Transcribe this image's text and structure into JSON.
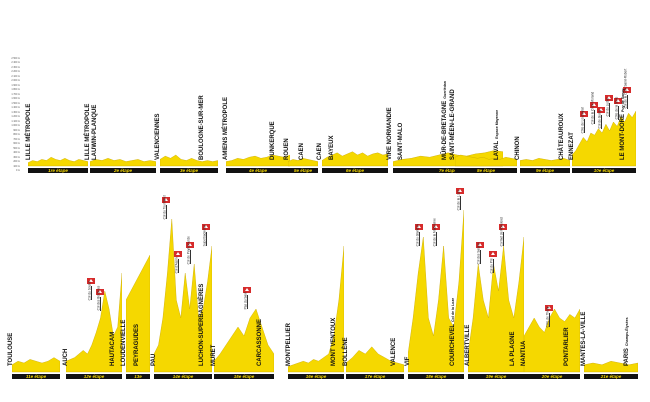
{
  "colors": {
    "terrain": "#f5d800",
    "band": "#111111",
    "band_text": "#f5d800",
    "depart_pin": "#1a6fb5",
    "arrivee_pin": "#d62b2b"
  },
  "y_axis": {
    "ticks": [
      "2 500 m",
      "2 400 m",
      "2 300 m",
      "2 200 m",
      "2 100 m",
      "2 000 m",
      "1 900 m",
      "1 800 m",
      "1 700 m",
      "1 600 m",
      "1 500 m",
      "1 400 m",
      "1 300 m",
      "1 200 m",
      "1 100 m",
      "1 000 m",
      "900 m",
      "800 m",
      "700 m",
      "600 m",
      "500 m",
      "400 m",
      "300 m",
      "200 m",
      "100 m",
      "0 m"
    ]
  },
  "stages": [
    {
      "id": 1,
      "band": "1re étape",
      "labels": [
        {
          "text": "LILLE MÉTROPOLE",
          "pin": "both"
        }
      ],
      "climbs": [],
      "profile": [
        0.03,
        0.05,
        0.04,
        0.06,
        0.05,
        0.08,
        0.06,
        0.05,
        0.07,
        0.05,
        0.04,
        0.06,
        0.05,
        0.04
      ]
    },
    {
      "id": 2,
      "band": "2e étape",
      "labels": [
        {
          "text": "LILLE MÉTROPOLE",
          "pin": "depart"
        },
        {
          "text": "LAUWIN-PLANQUE",
          "pin": "arrivee"
        }
      ],
      "climbs": [],
      "profile": [
        0.04,
        0.06,
        0.05,
        0.07,
        0.05,
        0.06,
        0.04,
        0.05,
        0.06,
        0.04,
        0.05,
        0.04
      ]
    },
    {
      "id": 3,
      "band": "3e étape",
      "labels": [
        {
          "text": "BOULOGNE-SUR-MER",
          "pin": "arrivee"
        },
        {
          "text": "VALENCIENNES",
          "pin": "depart"
        }
      ],
      "climbs": [],
      "profile": [
        0.06,
        0.09,
        0.07,
        0.1,
        0.06,
        0.05,
        0.07,
        0.05,
        0.04,
        0.05,
        0.04,
        0.05
      ]
    },
    {
      "id": 4,
      "band": "4e étape",
      "labels": [
        {
          "text": "DUNKERQUE",
          "pin": "arrivee"
        },
        {
          "text": "AMIENS MÉTROPOLE",
          "pin": "depart"
        }
      ],
      "climbs": [],
      "profile": [
        0.04,
        0.05,
        0.07,
        0.06,
        0.08,
        0.09,
        0.07,
        0.08,
        0.1,
        0.09,
        0.08,
        0.1
      ]
    },
    {
      "id": 5,
      "band": "5e étape",
      "labels": [
        {
          "text": "ROUEN",
          "pin": "arrivee"
        },
        {
          "text": "CAEN",
          "pin": "depart"
        }
      ],
      "climbs": [],
      "profile": [
        0.04,
        0.06,
        0.05,
        0.07,
        0.06,
        0.05,
        0.04
      ]
    },
    {
      "id": 6,
      "band": "6e étape",
      "labels": [
        {
          "text": "CAEN",
          "pin": "arrivee"
        },
        {
          "text": "BAYEUX",
          "pin": "depart"
        }
      ],
      "climbs": [],
      "profile": [
        0.05,
        0.08,
        0.1,
        0.12,
        0.09,
        0.11,
        0.13,
        0.1,
        0.12,
        0.09,
        0.11,
        0.12,
        0.1,
        0.11
      ]
    },
    {
      "id": 7,
      "band": "7e étape",
      "labels": [
        {
          "text": "VIRE NORMANDIE",
          "pin": "arrivee"
        },
        {
          "text": "SAINT-MALO",
          "pin": "depart"
        },
        {
          "text": "MÛR-DE-BRETAGNE",
          "sub": "Guerlédan",
          "pin": "arrivee"
        }
      ],
      "climbs": [],
      "profile": [
        0.04,
        0.06,
        0.07,
        0.09,
        0.08,
        0.1,
        0.12,
        0.1,
        0.09,
        0.11,
        0.12,
        0.14,
        0.13
      ]
    },
    {
      "id": 8,
      "band": "8e étape",
      "labels": [
        {
          "text": "SAINT-MÉEN-LE-GRAND",
          "pin": "depart"
        },
        {
          "text": "LAVAL",
          "sub": "Espace Mayenne",
          "pin": "arrivee"
        }
      ],
      "climbs": [],
      "profile": [
        0.08,
        0.1,
        0.09,
        0.08,
        0.07,
        0.08,
        0.06,
        0.07,
        0.06,
        0.08,
        0.07,
        0.06
      ]
    },
    {
      "id": 9,
      "band": "9e étape",
      "labels": [
        {
          "text": "CHINON",
          "pin": "depart"
        },
        {
          "text": "CHÂTEAUROUX",
          "pin": "arrivee"
        }
      ],
      "climbs": [],
      "profile": [
        0.05,
        0.06,
        0.05,
        0.07,
        0.06,
        0.05,
        0.06,
        0.07,
        0.05
      ]
    },
    {
      "id": 10,
      "band": "10e étape",
      "labels": [
        {
          "text": "ENNEZAT",
          "pin": "depart"
        },
        {
          "text": "LE MONT-DORE",
          "sub": "Puy de Sancy",
          "pin": "arrivee"
        }
      ],
      "climbs": [
        {
          "name": "Côte de Loubeyrat",
          "rel": 0.18,
          "h": 0.3
        },
        {
          "name": "Col de la Croix Morand",
          "rel": 0.34,
          "h": 0.38
        },
        {
          "name": "Col de Guéry",
          "rel": 0.46,
          "h": 0.34
        },
        {
          "name": "Col du Ludier",
          "rel": 0.58,
          "h": 0.45
        },
        {
          "name": "Côte de la Stèle",
          "rel": 0.72,
          "h": 0.42
        },
        {
          "name": "Col de la Croix Saint-Robert",
          "rel": 0.86,
          "h": 0.52
        }
      ],
      "profile": [
        0.1,
        0.14,
        0.2,
        0.26,
        0.22,
        0.3,
        0.28,
        0.34,
        0.3,
        0.38,
        0.32,
        0.4,
        0.36,
        0.45,
        0.4,
        0.48,
        0.44,
        0.5
      ]
    },
    {
      "id": 11,
      "band": "11e étape",
      "labels": [
        {
          "text": "TOULOUSE",
          "pin": "both"
        }
      ],
      "climbs": [],
      "profile": [
        0.04,
        0.06,
        0.05,
        0.07,
        0.06,
        0.05,
        0.06,
        0.08,
        0.06
      ]
    },
    {
      "id": 12,
      "band": "12e étape",
      "labels": [
        {
          "text": "AUCH",
          "pin": "depart"
        },
        {
          "text": "HAUTACAM",
          "pin": "arrivee"
        }
      ],
      "climbs": [
        {
          "name": "Col du Soulor",
          "rel": 0.45,
          "h": 0.4
        },
        {
          "name": "Col des Bordères",
          "rel": 0.6,
          "h": 0.34
        }
      ],
      "profile": [
        0.06,
        0.07,
        0.08,
        0.1,
        0.12,
        0.1,
        0.15,
        0.22,
        0.3,
        0.45,
        0.35,
        0.2,
        0.25,
        0.55
      ]
    },
    {
      "id": 13,
      "band": "13e",
      "labels": [
        {
          "text": "LOUDENVIELLE",
          "pin": "both"
        },
        {
          "text": "PEYRAGUDES",
          "pin": "arrivee"
        }
      ],
      "climbs": [],
      "profile": [
        0.4,
        0.45,
        0.5,
        0.55,
        0.6,
        0.65
      ]
    },
    {
      "id": 14,
      "band": "14e étape",
      "labels": [
        {
          "text": "PAU",
          "pin": "depart"
        },
        {
          "text": "LUCHON-SUPERBAGNÈRES",
          "pin": "arrivee"
        }
      ],
      "climbs": [
        {
          "name": "Col du Tourmalet",
          "rel": 0.2,
          "h": 0.85
        },
        {
          "name": "Col d'Aspin",
          "rel": 0.42,
          "h": 0.55
        },
        {
          "name": "Col de Peyresourde",
          "rel": 0.62,
          "h": 0.6
        },
        {
          "name": "Superbagnères",
          "rel": 0.9,
          "h": 0.7
        }
      ],
      "profile": [
        0.1,
        0.15,
        0.3,
        0.55,
        0.85,
        0.4,
        0.3,
        0.55,
        0.35,
        0.6,
        0.3,
        0.35,
        0.5,
        0.7
      ]
    },
    {
      "id": 15,
      "band": "15e étape",
      "labels": [
        {
          "text": "MURET",
          "pin": "depart"
        },
        {
          "text": "CARCASSONNE",
          "pin": "arrivee"
        }
      ],
      "climbs": [
        {
          "name": "Pas du Sant",
          "rel": 0.55,
          "h": 0.35
        }
      ],
      "profile": [
        0.06,
        0.1,
        0.15,
        0.2,
        0.25,
        0.2,
        0.3,
        0.35,
        0.25,
        0.15,
        0.1
      ]
    },
    {
      "id": 16,
      "band": "16e étape",
      "labels": [
        {
          "text": "MONTPELLIER",
          "pin": "depart"
        },
        {
          "text": "MONT VENTOUX",
          "pin": "arrivee"
        }
      ],
      "climbs": [],
      "profile": [
        0.03,
        0.04,
        0.05,
        0.06,
        0.05,
        0.07,
        0.06,
        0.08,
        0.1,
        0.2,
        0.4,
        0.7
      ]
    },
    {
      "id": 17,
      "band": "17e étape",
      "labels": [
        {
          "text": "BOLLÈNE",
          "pin": "depart"
        },
        {
          "text": "VALENCE",
          "pin": "arrivee"
        }
      ],
      "climbs": [],
      "profile": [
        0.05,
        0.08,
        0.12,
        0.1,
        0.14,
        0.1,
        0.08,
        0.06,
        0.05,
        0.04
      ]
    },
    {
      "id": 18,
      "band": "18e étape",
      "labels": [
        {
          "text": "VIF",
          "pin": "depart"
        },
        {
          "text": "COURCHEVEL",
          "sub": "Col de la Loze",
          "pin": "arrivee"
        }
      ],
      "climbs": [
        {
          "name": "Col du Glandon",
          "rel": 0.2,
          "h": 0.7
        },
        {
          "name": "Col de la Madeleine",
          "rel": 0.5,
          "h": 0.7
        },
        {
          "name": "Col de la Loze",
          "rel": 0.92,
          "h": 0.9
        }
      ],
      "profile": [
        0.1,
        0.3,
        0.55,
        0.75,
        0.3,
        0.2,
        0.4,
        0.7,
        0.3,
        0.25,
        0.5,
        0.9
      ]
    },
    {
      "id": 19,
      "band": "19e étape",
      "labels": [
        {
          "text": "ALBERTVILLE",
          "pin": "depart"
        },
        {
          "text": "LA PLAGNE",
          "pin": "arrivee"
        }
      ],
      "climbs": [
        {
          "name": "Col des Saisies",
          "rel": 0.22,
          "h": 0.6
        },
        {
          "name": "Col du Pré",
          "rel": 0.45,
          "h": 0.55
        },
        {
          "name": "Cormet de Roselend",
          "rel": 0.62,
          "h": 0.7
        }
      ],
      "profile": [
        0.1,
        0.3,
        0.6,
        0.4,
        0.3,
        0.6,
        0.45,
        0.7,
        0.4,
        0.3,
        0.5,
        0.75
      ]
    },
    {
      "id": 20,
      "band": "20e étape",
      "labels": [
        {
          "text": "NANTUA",
          "pin": "depart"
        },
        {
          "text": "PONTARLIER",
          "pin": "arrivee"
        }
      ],
      "climbs": [
        {
          "name": "Côte de Thésy",
          "rel": 0.45,
          "h": 0.25
        }
      ],
      "profile": [
        0.2,
        0.25,
        0.3,
        0.25,
        0.22,
        0.3,
        0.35,
        0.3,
        0.28,
        0.32,
        0.3,
        0.35
      ]
    },
    {
      "id": 21,
      "band": "21e étape",
      "labels": [
        {
          "text": "MANTES-LA-VILLE",
          "pin": "depart"
        },
        {
          "text": "PARIS",
          "sub": "Champs-Élysées",
          "pin": "arrivee"
        }
      ],
      "climbs": [],
      "profile": [
        0.04,
        0.05,
        0.04,
        0.06,
        0.05,
        0.04,
        0.05
      ]
    }
  ]
}
